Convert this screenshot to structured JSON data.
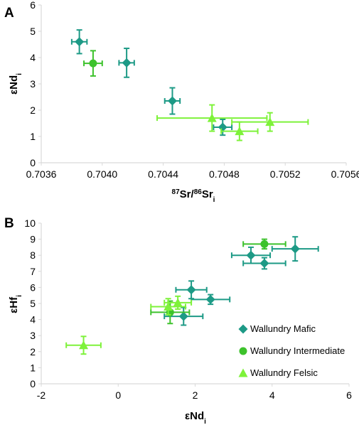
{
  "colors": {
    "mafic": "#1d9a86",
    "intermediate": "#3dc22c",
    "felsic": "#7ef23a",
    "axis": "#d9d9d9"
  },
  "chart_data": [
    {
      "type": "scatter",
      "panel_label": "A",
      "xlabel_parts": {
        "sup1": "87",
        "t1": "Sr/",
        "sup2": "86",
        "t2": "Sr",
        "sub": "i"
      },
      "ylabel_parts": {
        "t": "εNd",
        "sub": "i"
      },
      "xlim": [
        0.7036,
        0.7056
      ],
      "ylim": [
        0,
        6
      ],
      "xticks": [
        "0.7036",
        "0.7040",
        "0.7044",
        "0.7048",
        "0.7052",
        "0.7056"
      ],
      "xtick_values": [
        0.7036,
        0.704,
        0.7044,
        0.7048,
        0.7052,
        0.7056
      ],
      "yticks": [
        "0",
        "1",
        "2",
        "3",
        "4",
        "5",
        "6"
      ],
      "ytick_values": [
        0,
        1,
        2,
        3,
        4,
        5,
        6
      ],
      "grid": false,
      "series": [
        {
          "key": "mafic",
          "marker": "diamond",
          "points": [
            {
              "x": 0.70385,
              "y": 4.6,
              "xerr": 5e-05,
              "yerr": 0.45
            },
            {
              "x": 0.70416,
              "y": 3.8,
              "xerr": 5e-05,
              "yerr": 0.55
            },
            {
              "x": 0.70446,
              "y": 2.35,
              "xerr": 5e-05,
              "yerr": 0.5
            },
            {
              "x": 0.70479,
              "y": 1.35,
              "xerr": 6e-05,
              "yerr": 0.3
            }
          ]
        },
        {
          "key": "intermediate",
          "marker": "circle",
          "points": [
            {
              "x": 0.70394,
              "y": 3.78,
              "xerr": 6e-05,
              "yerr": 0.48
            }
          ]
        },
        {
          "key": "felsic",
          "marker": "triangle",
          "points": [
            {
              "x": 0.70472,
              "y": 1.7,
              "xerr": 0.00036,
              "yerr": 0.5
            },
            {
              "x": 0.7049,
              "y": 1.2,
              "xerr": 0.00012,
              "yerr": 0.35
            },
            {
              "x": 0.7051,
              "y": 1.55,
              "xerr": 0.00025,
              "yerr": 0.35
            }
          ]
        }
      ]
    },
    {
      "type": "scatter",
      "panel_label": "B",
      "xlabel_parts": {
        "t": "εNd",
        "sub": "i"
      },
      "ylabel_parts": {
        "t": "εHf",
        "sub": "i"
      },
      "xlim": [
        -2,
        6
      ],
      "ylim": [
        0,
        10
      ],
      "xticks": [
        "-2",
        "0",
        "2",
        "4",
        "6"
      ],
      "xtick_values": [
        -2,
        0,
        2,
        4,
        6
      ],
      "yticks": [
        "0",
        "1",
        "2",
        "3",
        "4",
        "5",
        "6",
        "7",
        "8",
        "9",
        "10"
      ],
      "ytick_values": [
        0,
        1,
        2,
        3,
        4,
        5,
        6,
        7,
        8,
        9,
        10
      ],
      "grid": false,
      "legend_position": "lower-right",
      "series": [
        {
          "key": "mafic",
          "name": "Wallundry Mafic",
          "marker": "diamond",
          "points": [
            {
              "x": 4.6,
              "y": 8.4,
              "xerr": 0.6,
              "yerr": 0.75
            },
            {
              "x": 3.45,
              "y": 8.0,
              "xerr": 0.5,
              "yerr": 0.5
            },
            {
              "x": 3.8,
              "y": 7.5,
              "xerr": 0.55,
              "yerr": 0.35
            },
            {
              "x": 1.9,
              "y": 5.85,
              "xerr": 0.4,
              "yerr": 0.55
            },
            {
              "x": 2.4,
              "y": 5.25,
              "xerr": 0.5,
              "yerr": 0.3
            },
            {
              "x": 1.7,
              "y": 4.2,
              "xerr": 0.5,
              "yerr": 0.55
            }
          ]
        },
        {
          "key": "intermediate",
          "name": "Wallundry Intermediate",
          "marker": "circle",
          "points": [
            {
              "x": 3.8,
              "y": 8.7,
              "xerr": 0.55,
              "yerr": 0.3
            },
            {
              "x": 1.35,
              "y": 4.45,
              "xerr": 0.5,
              "yerr": 0.7
            }
          ]
        },
        {
          "key": "felsic",
          "name": "Wallundry Felsic",
          "marker": "triangle",
          "points": [
            {
              "x": -0.9,
              "y": 2.4,
              "xerr": 0.45,
              "yerr": 0.55
            },
            {
              "x": 1.3,
              "y": 4.8,
              "xerr": 0.45,
              "yerr": 0.5
            },
            {
              "x": 1.55,
              "y": 5.05,
              "xerr": 0.35,
              "yerr": 0.4
            }
          ]
        }
      ]
    }
  ]
}
